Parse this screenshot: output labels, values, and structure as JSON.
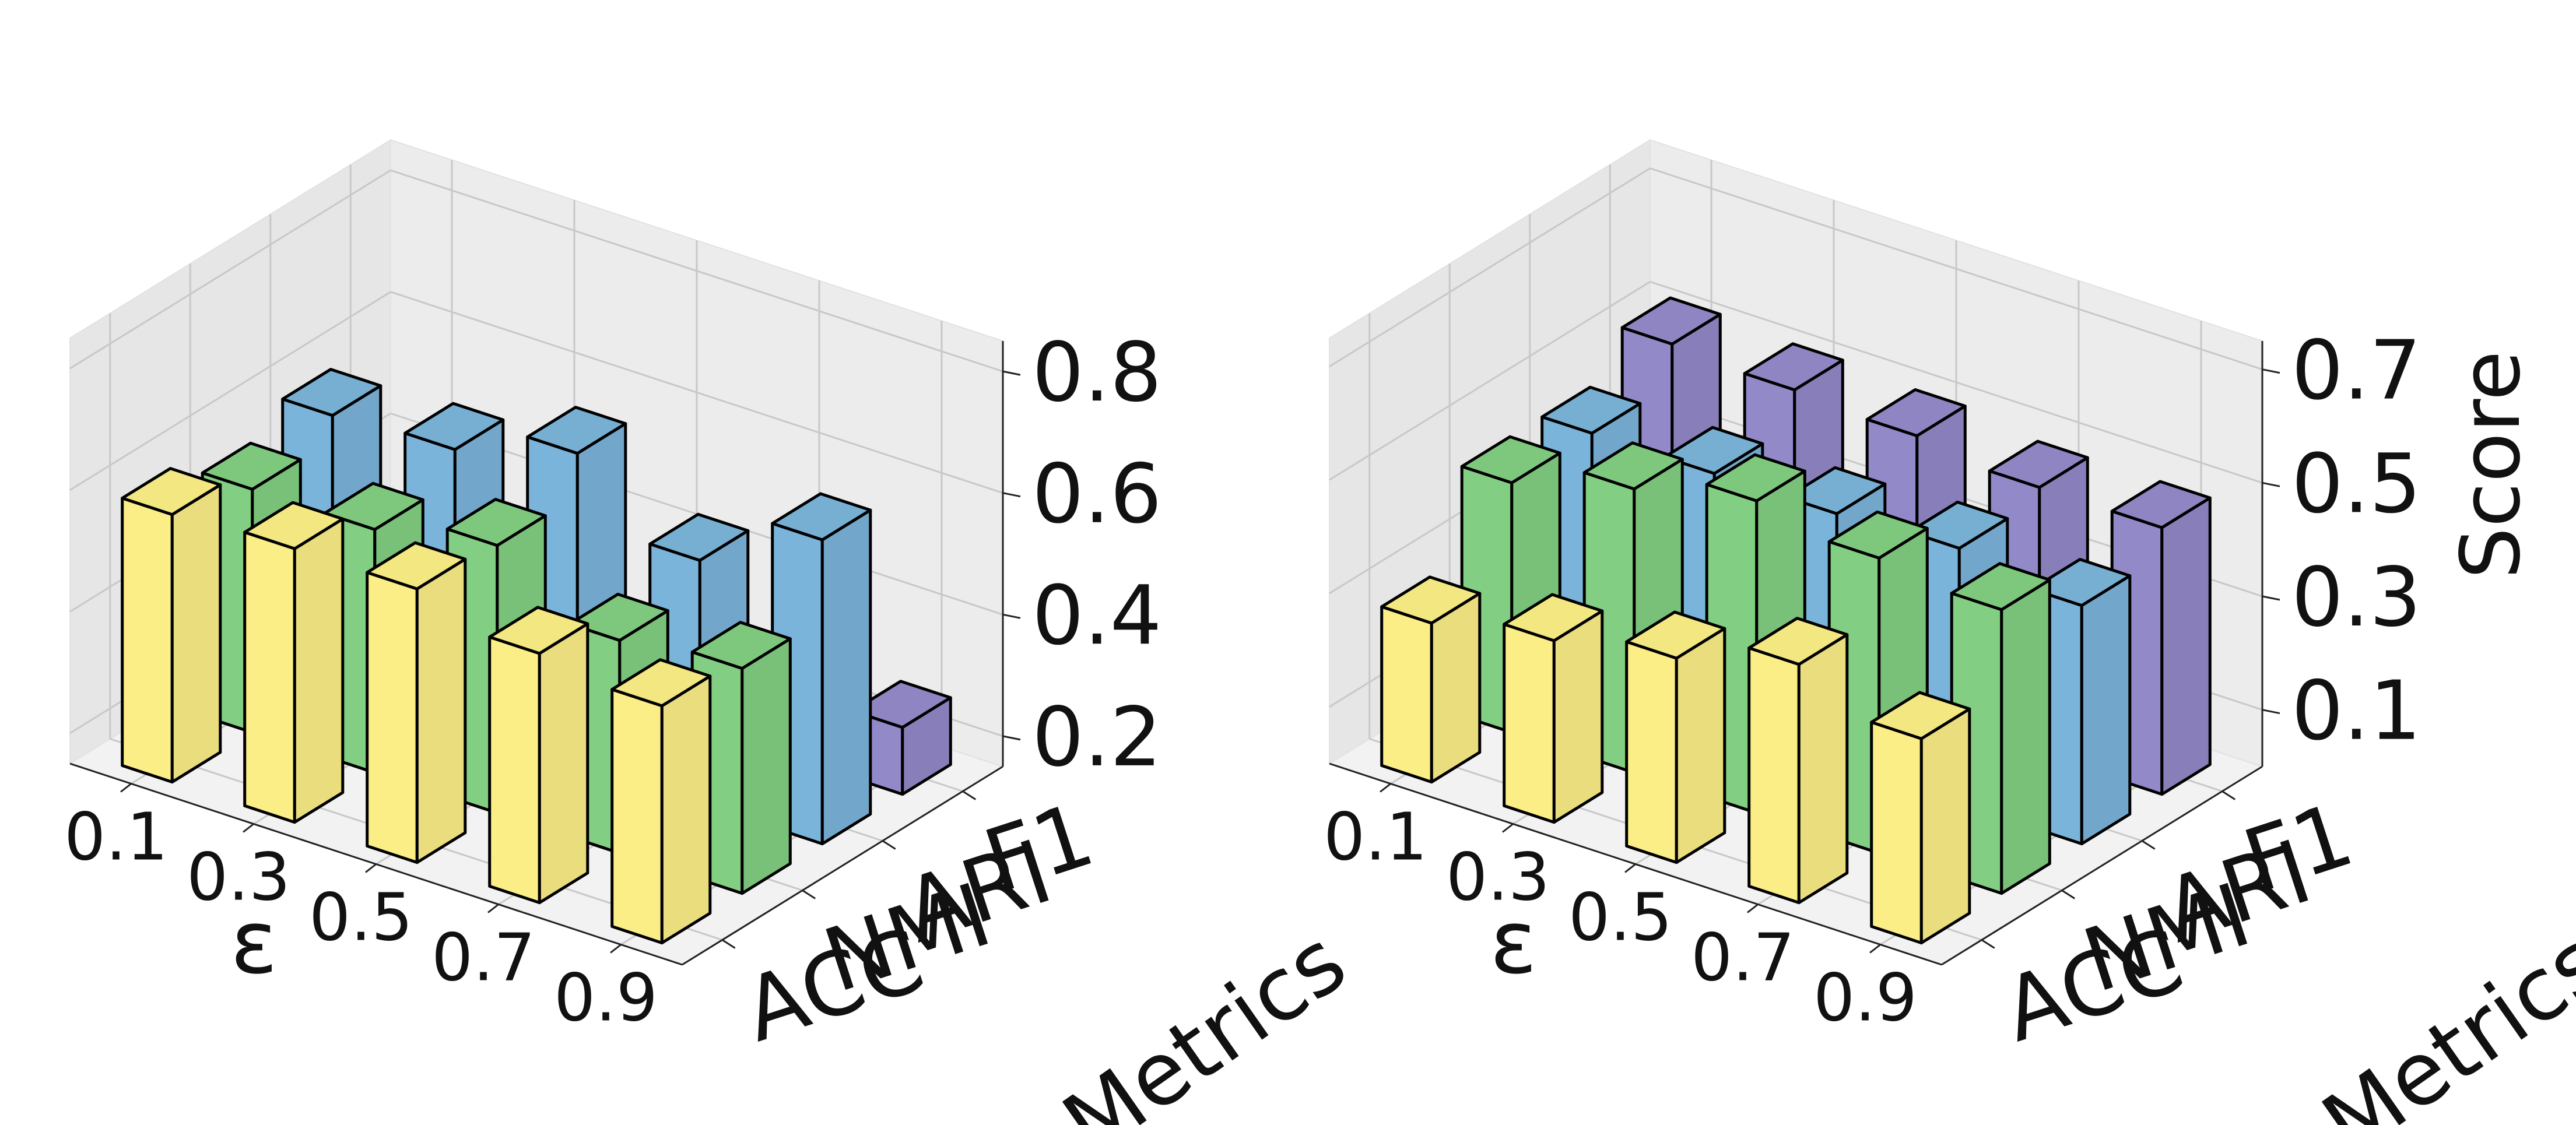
{
  "chart_data": [
    {
      "type": "bar",
      "categories": [
        "0.1",
        "0.3",
        "0.5",
        "0.7",
        "0.9"
      ],
      "metrics": [
        "ACC",
        "NMI",
        "ARI",
        "F1"
      ],
      "xlabel": "ε",
      "ylabel": "Metrics",
      "zlabel": "",
      "zticks": [
        "0.2",
        "0.4",
        "0.6",
        "0.8"
      ],
      "zlim": [
        0.15,
        0.85
      ],
      "series": [
        {
          "values": [
            0.59,
            0.6,
            0.6,
            0.56,
            0.54
          ]
        },
        {
          "values": [
            0.55,
            0.55,
            0.59,
            0.5,
            0.52
          ]
        },
        {
          "values": [
            0.59,
            0.6,
            0.66,
            0.55,
            0.65
          ]
        },
        {
          "values": [
            0.29,
            0.22,
            0.12,
            0.13,
            0.26
          ]
        }
      ],
      "colors": [
        "#fbee86",
        "#82ce82",
        "#7bb4da",
        "#9289c8"
      ]
    },
    {
      "type": "bar",
      "categories": [
        "0.1",
        "0.3",
        "0.5",
        "0.7",
        "0.9"
      ],
      "metrics": [
        "ACC",
        "NMI",
        "ARI",
        "F1"
      ],
      "xlabel": "ε",
      "ylabel": "Metrics",
      "zlabel": "Score",
      "zticks": [
        "0.1",
        "0.3",
        "0.5",
        "0.7"
      ],
      "zlim": [
        0.0,
        0.75
      ],
      "series": [
        {
          "values": [
            0.28,
            0.32,
            0.36,
            0.42,
            0.36
          ]
        },
        {
          "values": [
            0.44,
            0.5,
            0.55,
            0.52,
            0.5
          ]
        },
        {
          "values": [
            0.44,
            0.44,
            0.44,
            0.45,
            0.42
          ]
        },
        {
          "values": [
            0.51,
            0.5,
            0.49,
            0.47,
            0.47
          ]
        }
      ],
      "colors": [
        "#fbee86",
        "#82ce82",
        "#7bb4da",
        "#9289c8"
      ]
    }
  ]
}
